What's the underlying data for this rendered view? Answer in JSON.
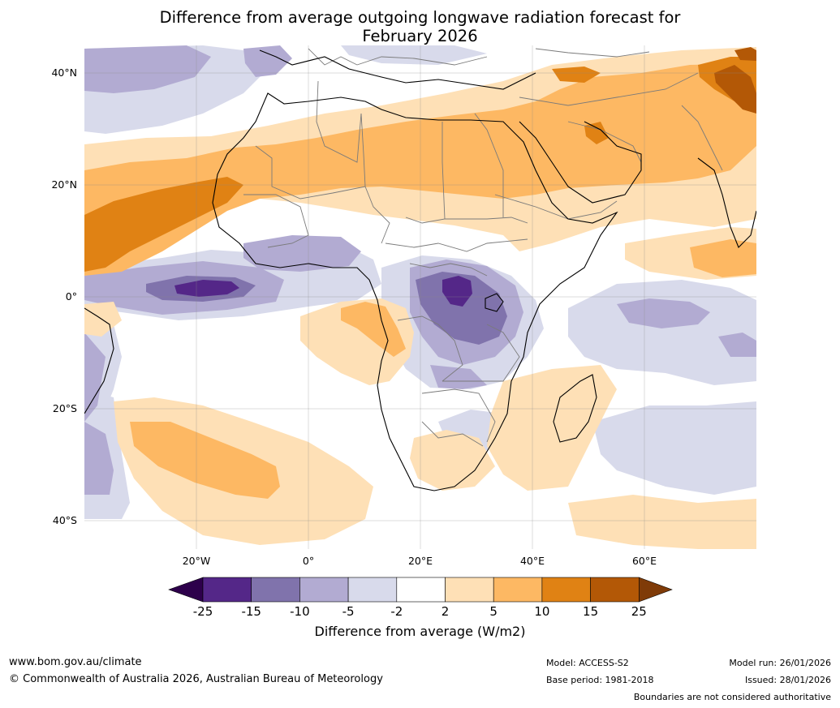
{
  "title": {
    "line1": "Difference from average outgoing longwave radiation forecast for",
    "line2": "February 2026"
  },
  "map": {
    "region": "Africa",
    "lat_labels": [
      "40°N",
      "20°N",
      "0°",
      "20°S",
      "40°S"
    ],
    "lon_labels": [
      "20°W",
      "0°",
      "20°E",
      "40°E",
      "60°E"
    ],
    "extent": {
      "lon": [
        -40,
        80
      ],
      "lat": [
        -45,
        45
      ]
    }
  },
  "colorbar": {
    "title": "Difference from average (W/m2)",
    "ticks": [
      "-25",
      "-15",
      "-10",
      "-5",
      "-2",
      "2",
      "5",
      "10",
      "15",
      "25"
    ],
    "colors": {
      "below": "#2d004b",
      "c1": "#542788",
      "c2": "#8073ac",
      "c3": "#b2abd2",
      "c4": "#d8daeb",
      "c5": "#ffffff",
      "c6": "#fee0b6",
      "c7": "#fdb863",
      "c8": "#e08214",
      "c9": "#b35806",
      "above": "#7f3b08"
    }
  },
  "footer": {
    "website": "www.bom.gov.au/climate",
    "copyright": "© Commonwealth of Australia 2026, Australian Bureau of Meteorology",
    "model": "Model: ACCESS-S2",
    "base_period": "Base period: 1981-2018",
    "model_run": "Model run: 26/01/2026",
    "issued": "Issued: 28/01/2026",
    "disclaimer": "Boundaries are not considered authoritative"
  }
}
